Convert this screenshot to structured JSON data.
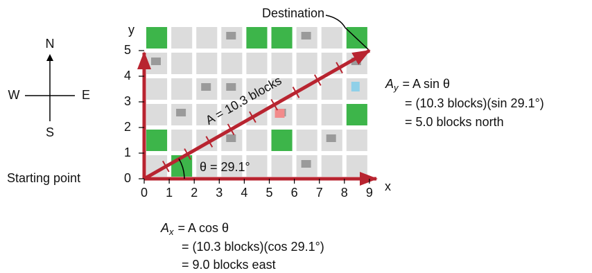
{
  "compass": {
    "north": "N",
    "west": "W",
    "east": "E",
    "south": "S"
  },
  "start_label": "Starting point",
  "destination_label": "Destination",
  "axes": {
    "x_label": "x",
    "y_label": "y",
    "xticks": [
      0,
      1,
      2,
      3,
      4,
      5,
      6,
      7,
      8,
      9
    ],
    "yticks": [
      0,
      1,
      2,
      3,
      4,
      5
    ]
  },
  "vector_label": "A = 10.3 blocks",
  "angle_label": "θ = 29.1°",
  "ax_equation": {
    "symbol": "A",
    "subscript": "x",
    "lines": [
      "= A cos θ",
      "= (10.3 blocks)(cos 29.1°)",
      "= 9.0 blocks east"
    ]
  },
  "ay_equation": {
    "symbol": "A",
    "subscript": "y",
    "lines": [
      "= A sin θ",
      "= (10.3 blocks)(sin 29.1°)",
      "= 5.0 blocks north"
    ]
  }
}
